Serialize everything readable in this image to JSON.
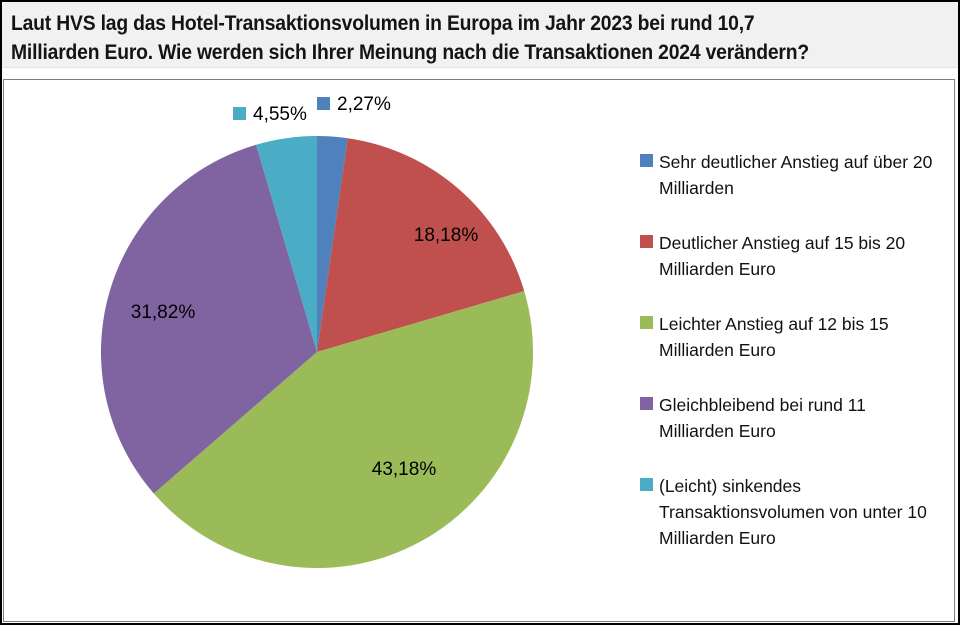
{
  "header": {
    "title": "Laut HVS lag das Hotel-Transaktionsvolumen in Europa im Jahr 2023 bei rund 10,7\nMilliarden Euro. Wie werden sich Ihrer Meinung nach die Transaktionen 2024 verändern?"
  },
  "chart_data": {
    "type": "pie",
    "title": "",
    "unit": "percent",
    "start_angle_deg": 0,
    "direction": "clockwise",
    "legend_position": "right",
    "slices": [
      {
        "label": "Sehr deutlicher Anstieg auf über 20 Milliarden",
        "legend_text": "Sehr deutlicher Anstieg auf über 20\nMilliarden",
        "value": 2.27,
        "display": "2,27%",
        "color": "#4F81BD",
        "label_placement": "outside"
      },
      {
        "label": "Deutlicher Anstieg auf 15 bis 20 Milliarden Euro",
        "legend_text": "Deutlicher Anstieg auf 15 bis 20\nMilliarden Euro",
        "value": 18.18,
        "display": "18,18%",
        "color": "#C0504D",
        "label_placement": "inside"
      },
      {
        "label": "Leichter Anstieg auf 12 bis 15 Milliarden Euro",
        "legend_text": "Leichter Anstieg auf 12 bis 15\nMilliarden Euro",
        "value": 43.18,
        "display": "43,18%",
        "color": "#9BBB59",
        "label_placement": "inside"
      },
      {
        "label": "Gleichbleibend bei rund 11 Milliarden Euro",
        "legend_text": "Gleichbleibend bei rund 11\nMilliarden Euro",
        "value": 31.82,
        "display": "31,82%",
        "color": "#8064A2",
        "label_placement": "inside"
      },
      {
        "label": "(Leicht) sinkendes Transaktionsvolumen von unter 10 Milliarden Euro",
        "legend_text": "(Leicht) sinkendes\nTransaktionsvolumen von unter 10\nMilliarden Euro",
        "value": 4.55,
        "display": "4,55%",
        "color": "#4BACC6",
        "label_placement": "outside"
      }
    ]
  },
  "style_colors": {
    "header_bg": "#F1F1F1",
    "plot_border": "#7F7F7F",
    "outer_border": "#000000",
    "label_text": "#000000"
  }
}
